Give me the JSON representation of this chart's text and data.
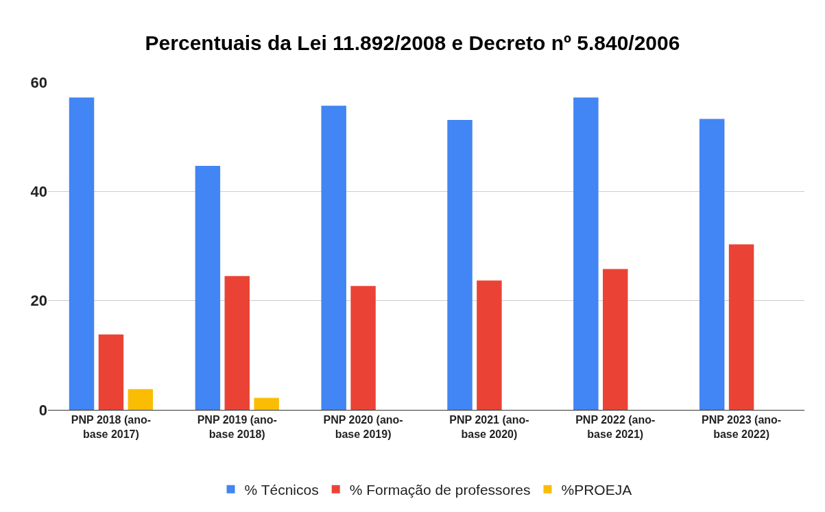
{
  "chart_data": {
    "type": "bar",
    "title": "Percentuais da Lei 11.892/2008 e Decreto nº 5.840/2006",
    "categories": [
      "PNP 2018 (ano-base 2017)",
      "PNP 2019 (ano-base 2018)",
      "PNP 2020 (ano-base 2019)",
      "PNP 2021 (ano-base 2020)",
      "PNP 2022 (ano-base 2021)",
      "PNP 2023 (ano-base 2022)"
    ],
    "series": [
      {
        "name": "% Técnicos",
        "color": "#4285f4",
        "values": [
          57.2,
          44.7,
          55.7,
          53.1,
          57.2,
          53.3
        ]
      },
      {
        "name": "% Formação de professores",
        "color": "#ea4335",
        "values": [
          13.8,
          24.5,
          22.7,
          23.7,
          25.8,
          30.3
        ]
      },
      {
        "name": "%PROEJA",
        "color": "#fbbc04",
        "values": [
          3.8,
          2.2,
          null,
          null,
          null,
          null
        ]
      }
    ],
    "ylim": [
      0,
      60
    ],
    "yticks": [
      0,
      20,
      40,
      60
    ],
    "grid": "y",
    "legend": "bottom"
  }
}
